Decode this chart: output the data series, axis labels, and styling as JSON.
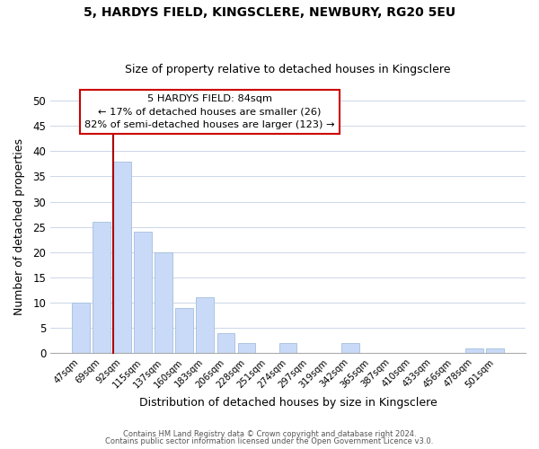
{
  "title1": "5, HARDYS FIELD, KINGSCLERE, NEWBURY, RG20 5EU",
  "title2": "Size of property relative to detached houses in Kingsclere",
  "xlabel": "Distribution of detached houses by size in Kingsclere",
  "ylabel": "Number of detached properties",
  "bar_color": "#c9daf8",
  "bar_edge_color": "#a4bfdb",
  "categories": [
    "47sqm",
    "69sqm",
    "92sqm",
    "115sqm",
    "137sqm",
    "160sqm",
    "183sqm",
    "206sqm",
    "228sqm",
    "251sqm",
    "274sqm",
    "297sqm",
    "319sqm",
    "342sqm",
    "365sqm",
    "387sqm",
    "410sqm",
    "433sqm",
    "456sqm",
    "478sqm",
    "501sqm"
  ],
  "values": [
    10,
    26,
    38,
    24,
    20,
    9,
    11,
    4,
    2,
    0,
    2,
    0,
    0,
    2,
    0,
    0,
    0,
    0,
    0,
    1,
    1
  ],
  "ylim": [
    0,
    50
  ],
  "yticks": [
    0,
    5,
    10,
    15,
    20,
    25,
    30,
    35,
    40,
    45,
    50
  ],
  "ref_line_color": "#aa0000",
  "annotation_title": "5 HARDYS FIELD: 84sqm",
  "annotation_line1": "← 17% of detached houses are smaller (26)",
  "annotation_line2": "82% of semi-detached houses are larger (123) →",
  "annotation_box_color": "#ffffff",
  "annotation_box_edge": "#cc0000",
  "footer1": "Contains HM Land Registry data © Crown copyright and database right 2024.",
  "footer2": "Contains public sector information licensed under the Open Government Licence v3.0.",
  "background_color": "#ffffff",
  "grid_color": "#ccd6e8"
}
